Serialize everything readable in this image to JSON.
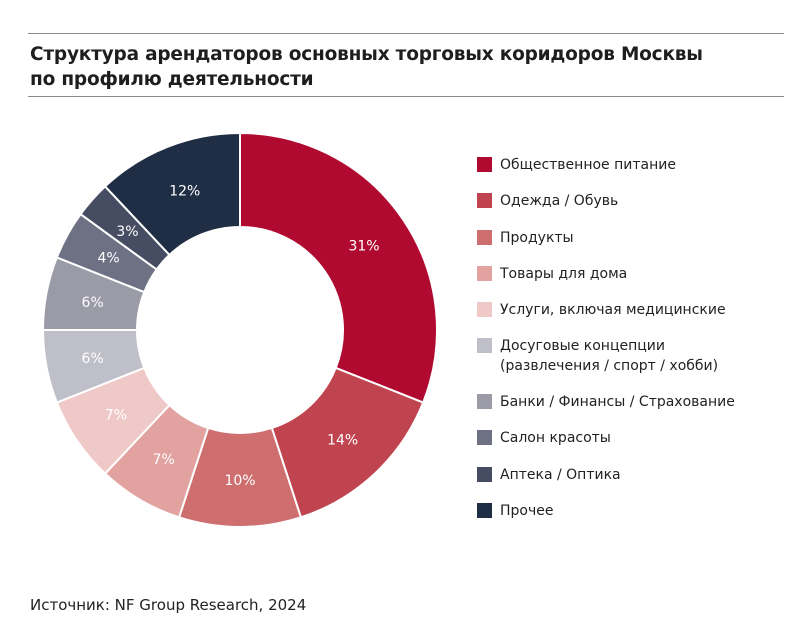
{
  "chart_data": {
    "type": "pie",
    "donut": true,
    "title": "Структура арендаторов основных торговых коридоров Москвы по профилю деятельности",
    "title_lines": [
      "Структура арендаторов основных торговых коридоров Москвы",
      "по профилю деятельности"
    ],
    "unit": "%",
    "legend_position": "right",
    "categories": [
      "Общественное питание",
      "Одежда / Обувь",
      "Продукты",
      "Товары для дома",
      "Услуги, включая медицинские",
      "Досуговые концепции (развлечения / спорт / хобби)",
      "Банки / Финансы / Страхование",
      "Салон красоты",
      "Аптека / Оптика",
      "Прочее"
    ],
    "legend_lines": [
      [
        "Общественное питание"
      ],
      [
        "Одежда / Обувь"
      ],
      [
        "Продукты"
      ],
      [
        "Товары для дома"
      ],
      [
        "Услуги, включая медицинские"
      ],
      [
        "Досуговые концепции",
        "(развлечения / спорт / хобби)"
      ],
      [
        "Банки / Финансы / Страхование"
      ],
      [
        "Салон красоты"
      ],
      [
        "Аптека / Оптика"
      ],
      [
        "Прочее"
      ]
    ],
    "values": [
      31,
      14,
      10,
      7,
      7,
      6,
      6,
      4,
      3,
      12
    ],
    "data_labels": [
      "31%",
      "14%",
      "10%",
      "7%",
      "7%",
      "6%",
      "6%",
      "4%",
      "3%",
      "12%"
    ],
    "colors": [
      "#b00a30",
      "#c0444f",
      "#cf6e6e",
      "#e1a2a0",
      "#efc9c7",
      "#bfbfca",
      "#9b9ba8",
      "#6e7184",
      "#464d63",
      "#1f2d45"
    ]
  },
  "source": "Источник: NF Group Research, 2024"
}
